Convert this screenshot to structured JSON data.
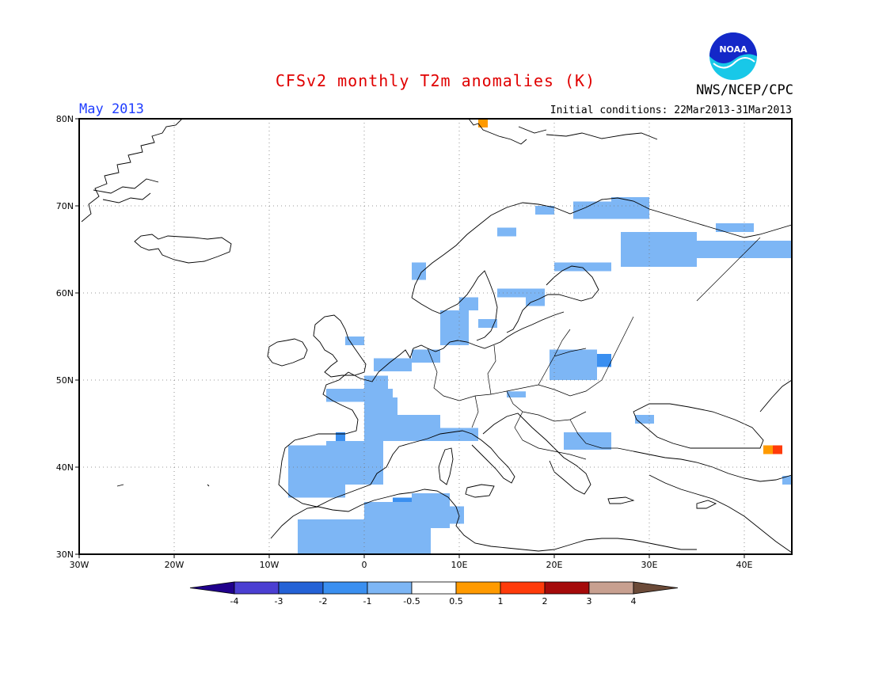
{
  "header": {
    "title": "CFSv2 monthly T2m anomalies (K)",
    "month": "May 2013",
    "initial_conditions": "Initial conditions: 22Mar2013-31Mar2013",
    "organization": "NWS/NCEP/CPC",
    "logo_text": "NOAA"
  },
  "map": {
    "lon_range": [
      -30,
      45
    ],
    "lat_range": [
      30,
      80
    ],
    "lon_ticks": [
      {
        "v": -30,
        "label": "30W"
      },
      {
        "v": -20,
        "label": "20W"
      },
      {
        "v": -10,
        "label": "10W"
      },
      {
        "v": 0,
        "label": "0"
      },
      {
        "v": 10,
        "label": "10E"
      },
      {
        "v": 20,
        "label": "20E"
      },
      {
        "v": 30,
        "label": "30E"
      },
      {
        "v": 40,
        "label": "40E"
      }
    ],
    "lat_ticks": [
      {
        "v": 30,
        "label": "30N"
      },
      {
        "v": 40,
        "label": "40N"
      },
      {
        "v": 50,
        "label": "50N"
      },
      {
        "v": 60,
        "label": "60N"
      },
      {
        "v": 70,
        "label": "70N"
      },
      {
        "v": 80,
        "label": "80N"
      }
    ],
    "grid": "dotted",
    "anomaly_cells": [
      {
        "lon": 12,
        "lat": 79,
        "w": 1,
        "h": 1,
        "class": "0.5 to 1"
      },
      {
        "lon": 42,
        "lat": 41.5,
        "w": 1,
        "h": 1,
        "class": "0.5 to 1"
      },
      {
        "lon": 43,
        "lat": 41.5,
        "w": 1,
        "h": 1,
        "class": "1 to 2"
      },
      {
        "lon": 3,
        "lat": 34,
        "w": 3,
        "h": 2.5,
        "class": "-2 to -1"
      },
      {
        "lon": -1,
        "lat": 32,
        "w": 4,
        "h": 2,
        "class": "-2 to -1"
      },
      {
        "lon": -6,
        "lat": 31.5,
        "w": 2,
        "h": 2,
        "class": "-2 to -1"
      },
      {
        "lon": -7,
        "lat": 37.5,
        "w": 5,
        "h": 3,
        "class": "-2 to -1"
      },
      {
        "lon": -3,
        "lat": 43,
        "w": 1,
        "h": 1,
        "class": "-2 to -1"
      },
      {
        "lon": 22.5,
        "lat": 51.5,
        "w": 3.5,
        "h": 1.5,
        "class": "-2 to -1"
      },
      {
        "lon": 24,
        "lat": 42,
        "w": 1.5,
        "h": 1,
        "class": "-2 to -1"
      },
      {
        "lon": -8,
        "lat": 36.5,
        "w": 6,
        "h": 6,
        "class": "-1 to -0.5"
      },
      {
        "lon": -4,
        "lat": 38,
        "w": 6,
        "h": 5,
        "class": "-1 to -0.5"
      },
      {
        "lon": -7,
        "lat": 30,
        "w": 7,
        "h": 4,
        "class": "-1 to -0.5"
      },
      {
        "lon": 0,
        "lat": 30,
        "w": 7,
        "h": 6,
        "class": "-1 to -0.5"
      },
      {
        "lon": 5,
        "lat": 33,
        "w": 4,
        "h": 4,
        "class": "-1 to -0.5"
      },
      {
        "lon": 9,
        "lat": 33.5,
        "w": 1.5,
        "h": 2,
        "class": "-1 to -0.5"
      },
      {
        "lon": 0,
        "lat": 43,
        "w": 8,
        "h": 3,
        "class": "-1 to -0.5"
      },
      {
        "lon": 0,
        "lat": 45.5,
        "w": 3.5,
        "h": 2.5,
        "class": "-1 to -0.5"
      },
      {
        "lon": 8,
        "lat": 43,
        "w": 4,
        "h": 1.5,
        "class": "-1 to -0.5"
      },
      {
        "lon": -4,
        "lat": 47.5,
        "w": 7,
        "h": 1.5,
        "class": "-1 to -0.5"
      },
      {
        "lon": 0,
        "lat": 49,
        "w": 2.5,
        "h": 1.5,
        "class": "-1 to -0.5"
      },
      {
        "lon": 1,
        "lat": 51,
        "w": 4,
        "h": 1.5,
        "class": "-1 to -0.5"
      },
      {
        "lon": 5,
        "lat": 52,
        "w": 3,
        "h": 1.5,
        "class": "-1 to -0.5"
      },
      {
        "lon": -2,
        "lat": 54,
        "w": 2,
        "h": 1,
        "class": "-1 to -0.5"
      },
      {
        "lon": 8,
        "lat": 54,
        "w": 3,
        "h": 2,
        "class": "-1 to -0.5"
      },
      {
        "lon": 8,
        "lat": 56,
        "w": 3,
        "h": 2,
        "class": "-1 to -0.5"
      },
      {
        "lon": 10,
        "lat": 58,
        "w": 2,
        "h": 1.5,
        "class": "-1 to -0.5"
      },
      {
        "lon": 12,
        "lat": 56,
        "w": 2,
        "h": 1,
        "class": "-1 to -0.5"
      },
      {
        "lon": 14,
        "lat": 59.5,
        "w": 5,
        "h": 1,
        "class": "-1 to -0.5"
      },
      {
        "lon": 17,
        "lat": 58.5,
        "w": 2,
        "h": 1,
        "class": "-1 to -0.5"
      },
      {
        "lon": 5,
        "lat": 61.5,
        "w": 1.5,
        "h": 2,
        "class": "-1 to -0.5"
      },
      {
        "lon": 14,
        "lat": 66.5,
        "w": 2,
        "h": 1,
        "class": "-1 to -0.5"
      },
      {
        "lon": 18,
        "lat": 69,
        "w": 2,
        "h": 1,
        "class": "-1 to -0.5"
      },
      {
        "lon": 22,
        "lat": 68.5,
        "w": 8,
        "h": 2,
        "class": "-1 to -0.5"
      },
      {
        "lon": 26,
        "lat": 70,
        "w": 4,
        "h": 1,
        "class": "-1 to -0.5"
      },
      {
        "lon": 20,
        "lat": 62.5,
        "w": 6,
        "h": 1,
        "class": "-1 to -0.5"
      },
      {
        "lon": 27,
        "lat": 63,
        "w": 8,
        "h": 4,
        "class": "-1 to -0.5"
      },
      {
        "lon": 33,
        "lat": 64,
        "w": 12,
        "h": 2,
        "class": "-1 to -0.5"
      },
      {
        "lon": 37,
        "lat": 67,
        "w": 4,
        "h": 1,
        "class": "-1 to -0.5"
      },
      {
        "lon": 19.5,
        "lat": 50,
        "w": 5,
        "h": 3.5,
        "class": "-1 to -0.5"
      },
      {
        "lon": 15,
        "lat": 48,
        "w": 2,
        "h": 0.7,
        "class": "-1 to -0.5"
      },
      {
        "lon": 21,
        "lat": 42,
        "w": 5,
        "h": 2,
        "class": "-1 to -0.5"
      },
      {
        "lon": 28.5,
        "lat": 45,
        "w": 2,
        "h": 1,
        "class": "-1 to -0.5"
      },
      {
        "lon": 44,
        "lat": 38,
        "w": 1,
        "h": 1,
        "class": "-1 to -0.5"
      }
    ]
  },
  "legend": {
    "bins": [
      {
        "label": "-4",
        "color": "#20008c"
      },
      {
        "label": "-3",
        "color": "#4b3fd2"
      },
      {
        "label": "-2",
        "color": "#2462d6"
      },
      {
        "label": "-1",
        "color": "#3a8ff0"
      },
      {
        "label": "-0.5",
        "color": "#7db6f5"
      },
      {
        "label": "0.5",
        "color": "#ffffff"
      },
      {
        "label": "1",
        "color": "#ff9a00"
      },
      {
        "label": "2",
        "color": "#ff3b0a"
      },
      {
        "label": "3",
        "color": "#a50a0a"
      },
      {
        "label": "4",
        "color": "#c8a090"
      },
      {
        "label": "",
        "color": "#6b4a38"
      }
    ],
    "tick_labels": [
      "-4",
      "-3",
      "-2",
      "-1",
      "-0.5",
      "0.5",
      "1",
      "2",
      "3",
      "4"
    ]
  }
}
